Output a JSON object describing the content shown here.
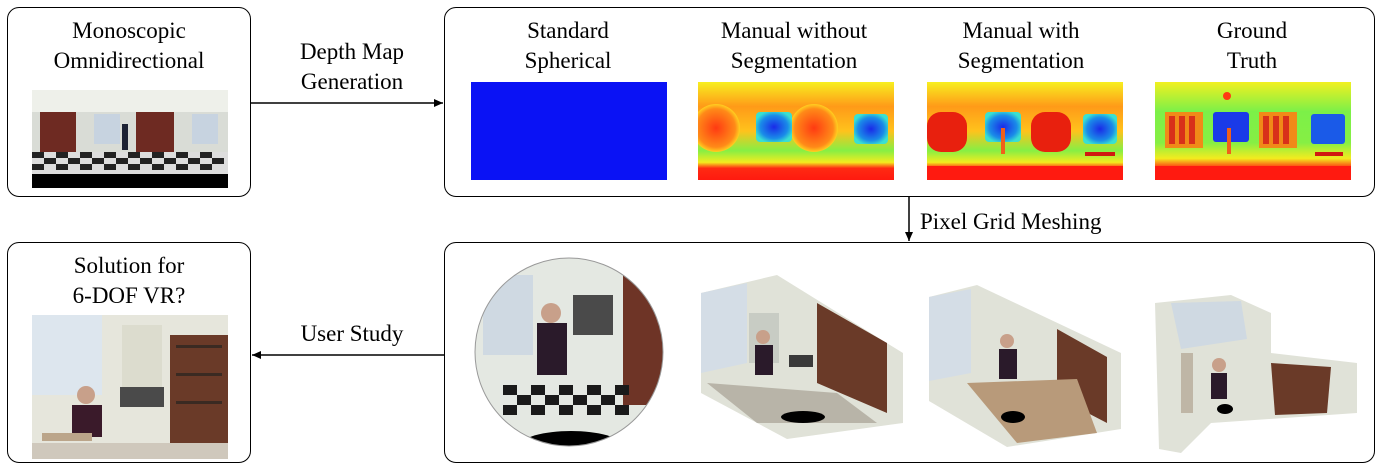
{
  "input": {
    "title_line1": "Monoscopic",
    "title_line2": "Omnidirectional"
  },
  "arrows": {
    "generation_line1": "Depth Map",
    "generation_line2": "Generation",
    "meshing": "Pixel Grid Meshing",
    "study": "User Study"
  },
  "depth_maps": [
    {
      "line1": "Standard",
      "line2": "Spherical"
    },
    {
      "line1": "Manual without",
      "line2": "Segmentation"
    },
    {
      "line1": "Manual with",
      "line2": "Segmentation"
    },
    {
      "line1": "Ground",
      "line2": "Truth"
    }
  ],
  "output": {
    "title_line1": "Solution for",
    "title_line2": "6-DOF VR?"
  },
  "colors": {
    "spherical_blue": "#0a12f5",
    "depth_red": "#ff1a10",
    "depth_yellow": "#f4e81a",
    "depth_green": "#58e84a",
    "depth_blue": "#1a4de8"
  }
}
